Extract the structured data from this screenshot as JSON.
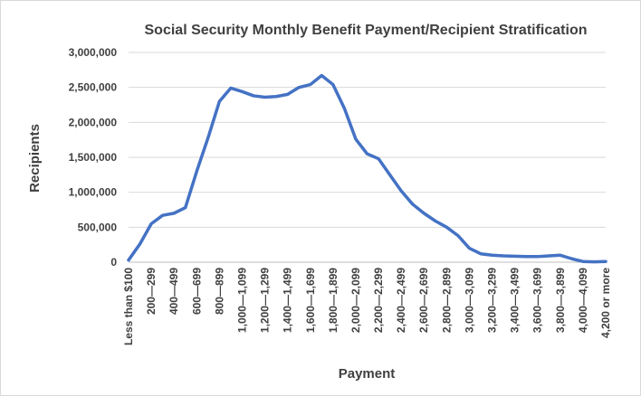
{
  "chart_data": {
    "type": "line",
    "title": "Social Security Monthly Benefit Payment/Recipient Stratification",
    "xlabel": "Payment",
    "ylabel": "Recipients",
    "ylim": [
      0,
      3000000
    ],
    "y_ticks": [
      "0",
      "500,000",
      "1,000,000",
      "1,500,000",
      "2,000,000",
      "2,500,000",
      "3,000,000"
    ],
    "y_tick_values": [
      0,
      500000,
      1000000,
      1500000,
      2000000,
      2500000,
      3000000
    ],
    "grid": true,
    "legend": "none",
    "line_color": "#4472c4",
    "x_tick_labels": [
      "Less than $100",
      "200—299",
      "400—499",
      "600—699",
      "800—899",
      "1,000—1,099",
      "1,200—1,299",
      "1,400—1,499",
      "1,600—1,699",
      "1,800—1,899",
      "2,000—2,099",
      "2,200—2,299",
      "2,400—2,499",
      "2,600—2,699",
      "2,800—2,899",
      "3,000—3,099",
      "3,200—3,299",
      "3,400—3,499",
      "3,600—3,699",
      "3,800—3,899",
      "4,000—4,099",
      "4,200 or more"
    ],
    "series": [
      {
        "values": [
          30000,
          260000,
          550000,
          670000,
          700000,
          780000,
          1300000,
          1780000,
          2300000,
          2490000,
          2440000,
          2380000,
          2360000,
          2370000,
          2400000,
          2500000,
          2540000,
          2670000,
          2540000,
          2200000,
          1760000,
          1550000,
          1480000,
          1250000,
          1020000,
          830000,
          700000,
          590000,
          500000,
          380000,
          200000,
          120000,
          100000,
          90000,
          85000,
          80000,
          80000,
          90000,
          100000,
          50000,
          10000,
          5000,
          10000
        ]
      }
    ]
  }
}
